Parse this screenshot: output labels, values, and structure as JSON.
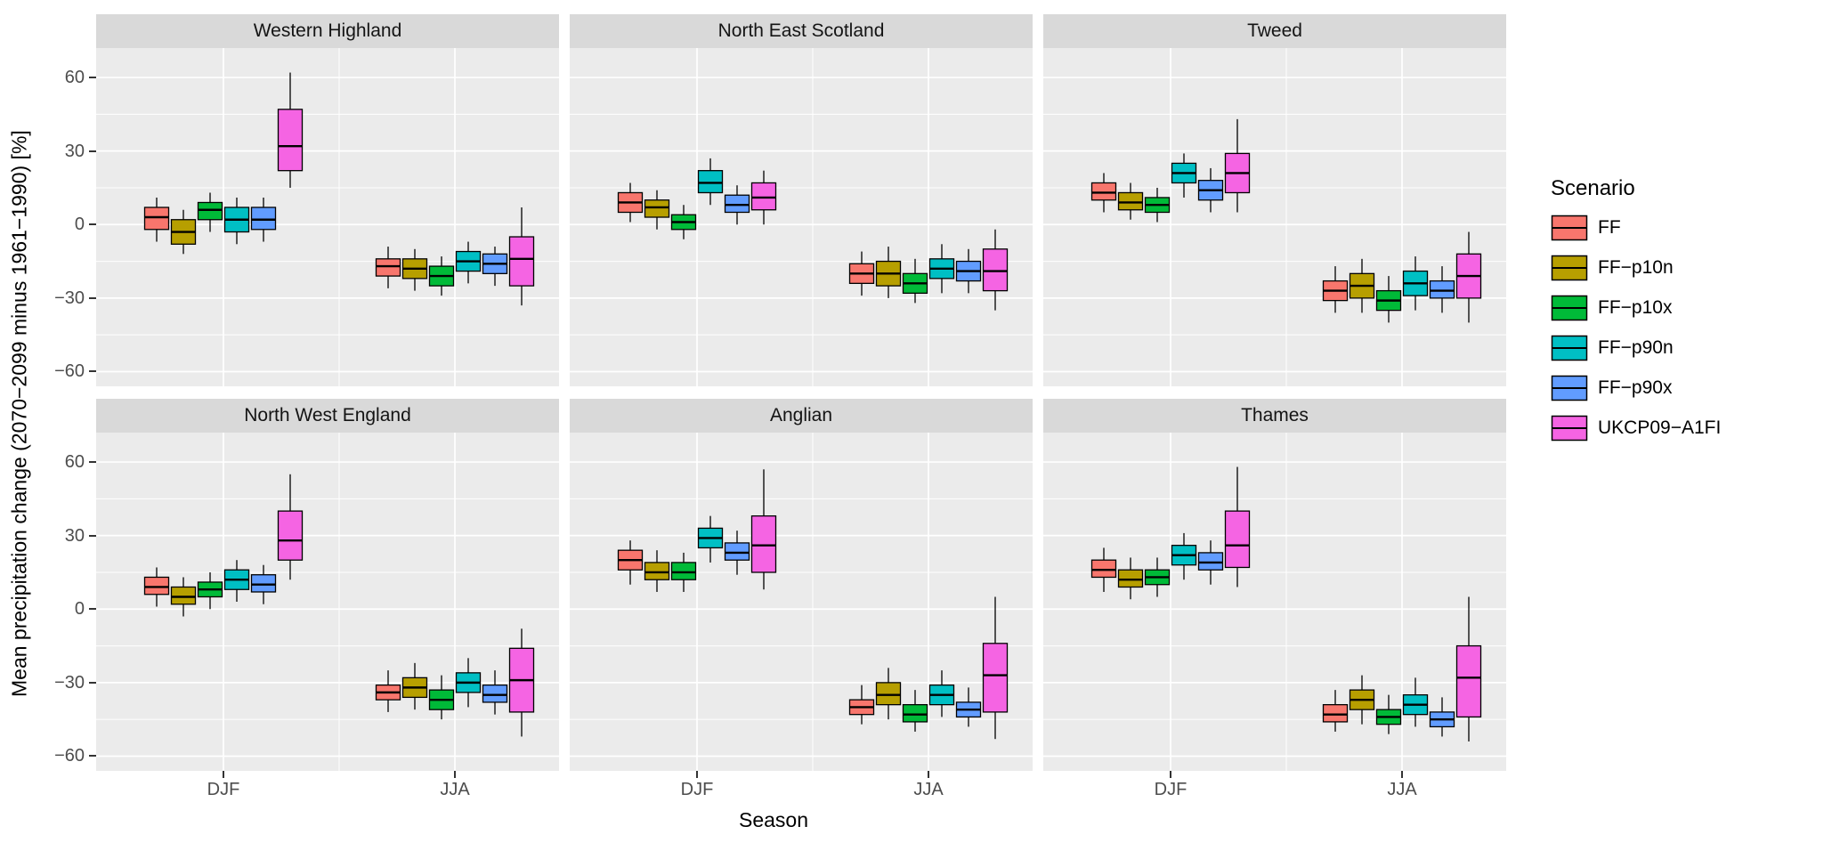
{
  "ylabel": "Mean precipitation change (2070−2099 minus 1961−1990) [%]",
  "xlabel": "Season",
  "legend": {
    "title": "Scenario",
    "items": [
      {
        "label": "FF"
      },
      {
        "label": "FF−p10n"
      },
      {
        "label": "FF−p10x"
      },
      {
        "label": "FF−p90n"
      },
      {
        "label": "FF−p90x"
      },
      {
        "label": "UKCP09−A1FI"
      }
    ]
  },
  "chart_data": {
    "type": "boxplot",
    "facet_layout": {
      "rows": 2,
      "cols": 3
    },
    "x_categories": [
      "DJF",
      "JJA"
    ],
    "scenario_order": [
      "FF",
      "FF-p10n",
      "FF-p10x",
      "FF-p90n",
      "FF-p90x",
      "UKCP09-A1FI"
    ],
    "colors": {
      "FF": "#F8766D",
      "FF-p10n": "#B79F00",
      "FF-p10x": "#00BA38",
      "FF-p90n": "#00BFC4",
      "FF-p90x": "#619CFF",
      "UKCP09-A1FI": "#F564E3"
    },
    "panel_bg": "#EBEBEB",
    "strip_bg": "#D9D9D9",
    "grid_color": "#FFFFFF",
    "ylim": [
      -66,
      72
    ],
    "yticks": [
      -60,
      -30,
      0,
      30,
      60
    ],
    "yticks_minor": [
      -45,
      -15,
      15,
      45
    ],
    "stat_format": [
      "whisker_low",
      "q1",
      "median",
      "q3",
      "whisker_high"
    ],
    "panels": [
      {
        "title": "Western Highland",
        "boxes": {
          "DJF": {
            "FF": [
              -7,
              -2,
              3,
              7,
              11
            ],
            "FF-p10n": [
              -12,
              -8,
              -3,
              2,
              6
            ],
            "FF-p10x": [
              -3,
              2,
              6,
              9,
              13
            ],
            "FF-p90n": [
              -8,
              -3,
              2,
              7,
              11
            ],
            "FF-p90x": [
              -7,
              -2,
              2,
              7,
              11
            ],
            "UKCP09-A1FI": [
              15,
              22,
              32,
              47,
              62
            ]
          },
          "JJA": {
            "FF": [
              -26,
              -21,
              -17,
              -14,
              -9
            ],
            "FF-p10n": [
              -27,
              -22,
              -18,
              -14,
              -10
            ],
            "FF-p10x": [
              -29,
              -25,
              -21,
              -17,
              -13
            ],
            "FF-p90n": [
              -24,
              -19,
              -15,
              -11,
              -7
            ],
            "FF-p90x": [
              -25,
              -20,
              -16,
              -12,
              -9
            ],
            "UKCP09-A1FI": [
              -33,
              -25,
              -14,
              -5,
              7
            ]
          }
        }
      },
      {
        "title": "North East Scotland",
        "boxes": {
          "DJF": {
            "FF": [
              1,
              5,
              9,
              13,
              17
            ],
            "FF-p10n": [
              -2,
              3,
              7,
              10,
              14
            ],
            "FF-p10x": [
              -6,
              -2,
              1,
              4,
              8
            ],
            "FF-p90n": [
              8,
              13,
              17,
              22,
              27
            ],
            "FF-p90x": [
              0,
              5,
              8,
              12,
              16
            ],
            "UKCP09-A1FI": [
              0,
              6,
              11,
              17,
              22
            ]
          },
          "JJA": {
            "FF": [
              -29,
              -24,
              -20,
              -16,
              -11
            ],
            "FF-p10n": [
              -30,
              -25,
              -20,
              -15,
              -9
            ],
            "FF-p10x": [
              -32,
              -28,
              -24,
              -20,
              -14
            ],
            "FF-p90n": [
              -28,
              -22,
              -18,
              -14,
              -8
            ],
            "FF-p90x": [
              -28,
              -23,
              -19,
              -15,
              -10
            ],
            "UKCP09-A1FI": [
              -35,
              -27,
              -19,
              -10,
              -2
            ]
          }
        }
      },
      {
        "title": "Tweed",
        "boxes": {
          "DJF": {
            "FF": [
              5,
              10,
              13,
              17,
              21
            ],
            "FF-p10n": [
              2,
              6,
              9,
              13,
              17
            ],
            "FF-p10x": [
              1,
              5,
              8,
              11,
              15
            ],
            "FF-p90n": [
              11,
              17,
              21,
              25,
              29
            ],
            "FF-p90x": [
              5,
              10,
              14,
              18,
              23
            ],
            "UKCP09-A1FI": [
              5,
              13,
              21,
              29,
              43
            ]
          },
          "JJA": {
            "FF": [
              -36,
              -31,
              -27,
              -23,
              -17
            ],
            "FF-p10n": [
              -36,
              -30,
              -25,
              -20,
              -14
            ],
            "FF-p10x": [
              -40,
              -35,
              -31,
              -27,
              -21
            ],
            "FF-p90n": [
              -35,
              -29,
              -24,
              -19,
              -13
            ],
            "FF-p90x": [
              -36,
              -30,
              -27,
              -23,
              -17
            ],
            "UKCP09-A1FI": [
              -40,
              -30,
              -21,
              -12,
              -3
            ]
          }
        }
      },
      {
        "title": "North West England",
        "boxes": {
          "DJF": {
            "FF": [
              1,
              6,
              9,
              13,
              17
            ],
            "FF-p10n": [
              -3,
              2,
              5,
              9,
              13
            ],
            "FF-p10x": [
              0,
              5,
              8,
              11,
              15
            ],
            "FF-p90n": [
              3,
              8,
              12,
              16,
              20
            ],
            "FF-p90x": [
              2,
              7,
              10,
              14,
              18
            ],
            "UKCP09-A1FI": [
              12,
              20,
              28,
              40,
              55
            ]
          },
          "JJA": {
            "FF": [
              -42,
              -37,
              -34,
              -31,
              -25
            ],
            "FF-p10n": [
              -41,
              -36,
              -32,
              -28,
              -22
            ],
            "FF-p10x": [
              -45,
              -41,
              -37,
              -33,
              -27
            ],
            "FF-p90n": [
              -40,
              -34,
              -30,
              -26,
              -20
            ],
            "FF-p90x": [
              -43,
              -38,
              -35,
              -31,
              -25
            ],
            "UKCP09-A1FI": [
              -52,
              -42,
              -29,
              -16,
              -8
            ]
          }
        }
      },
      {
        "title": "Anglian",
        "boxes": {
          "DJF": {
            "FF": [
              10,
              16,
              20,
              24,
              28
            ],
            "FF-p10n": [
              7,
              12,
              15,
              19,
              24
            ],
            "FF-p10x": [
              7,
              12,
              15,
              19,
              23
            ],
            "FF-p90n": [
              19,
              25,
              29,
              33,
              38
            ],
            "FF-p90x": [
              14,
              20,
              23,
              27,
              32
            ],
            "UKCP09-A1FI": [
              8,
              15,
              26,
              38,
              57
            ]
          },
          "JJA": {
            "FF": [
              -47,
              -43,
              -40,
              -37,
              -31
            ],
            "FF-p10n": [
              -45,
              -39,
              -35,
              -30,
              -24
            ],
            "FF-p10x": [
              -50,
              -46,
              -43,
              -39,
              -33
            ],
            "FF-p90n": [
              -44,
              -39,
              -35,
              -31,
              -25
            ],
            "FF-p90x": [
              -48,
              -44,
              -41,
              -38,
              -32
            ],
            "UKCP09-A1FI": [
              -53,
              -42,
              -27,
              -14,
              5
            ]
          }
        }
      },
      {
        "title": "Thames",
        "boxes": {
          "DJF": {
            "FF": [
              7,
              13,
              16,
              20,
              25
            ],
            "FF-p10n": [
              4,
              9,
              12,
              16,
              21
            ],
            "FF-p10x": [
              5,
              10,
              13,
              16,
              21
            ],
            "FF-p90n": [
              12,
              18,
              22,
              26,
              31
            ],
            "FF-p90x": [
              10,
              16,
              19,
              23,
              28
            ],
            "UKCP09-A1FI": [
              9,
              17,
              26,
              40,
              58
            ]
          },
          "JJA": {
            "FF": [
              -50,
              -46,
              -43,
              -39,
              -33
            ],
            "FF-p10n": [
              -47,
              -41,
              -37,
              -33,
              -27
            ],
            "FF-p10x": [
              -51,
              -47,
              -44,
              -41,
              -35
            ],
            "FF-p90n": [
              -48,
              -43,
              -39,
              -35,
              -28
            ],
            "FF-p90x": [
              -52,
              -48,
              -45,
              -42,
              -36
            ],
            "UKCP09-A1FI": [
              -54,
              -44,
              -28,
              -15,
              5
            ]
          }
        }
      }
    ]
  }
}
